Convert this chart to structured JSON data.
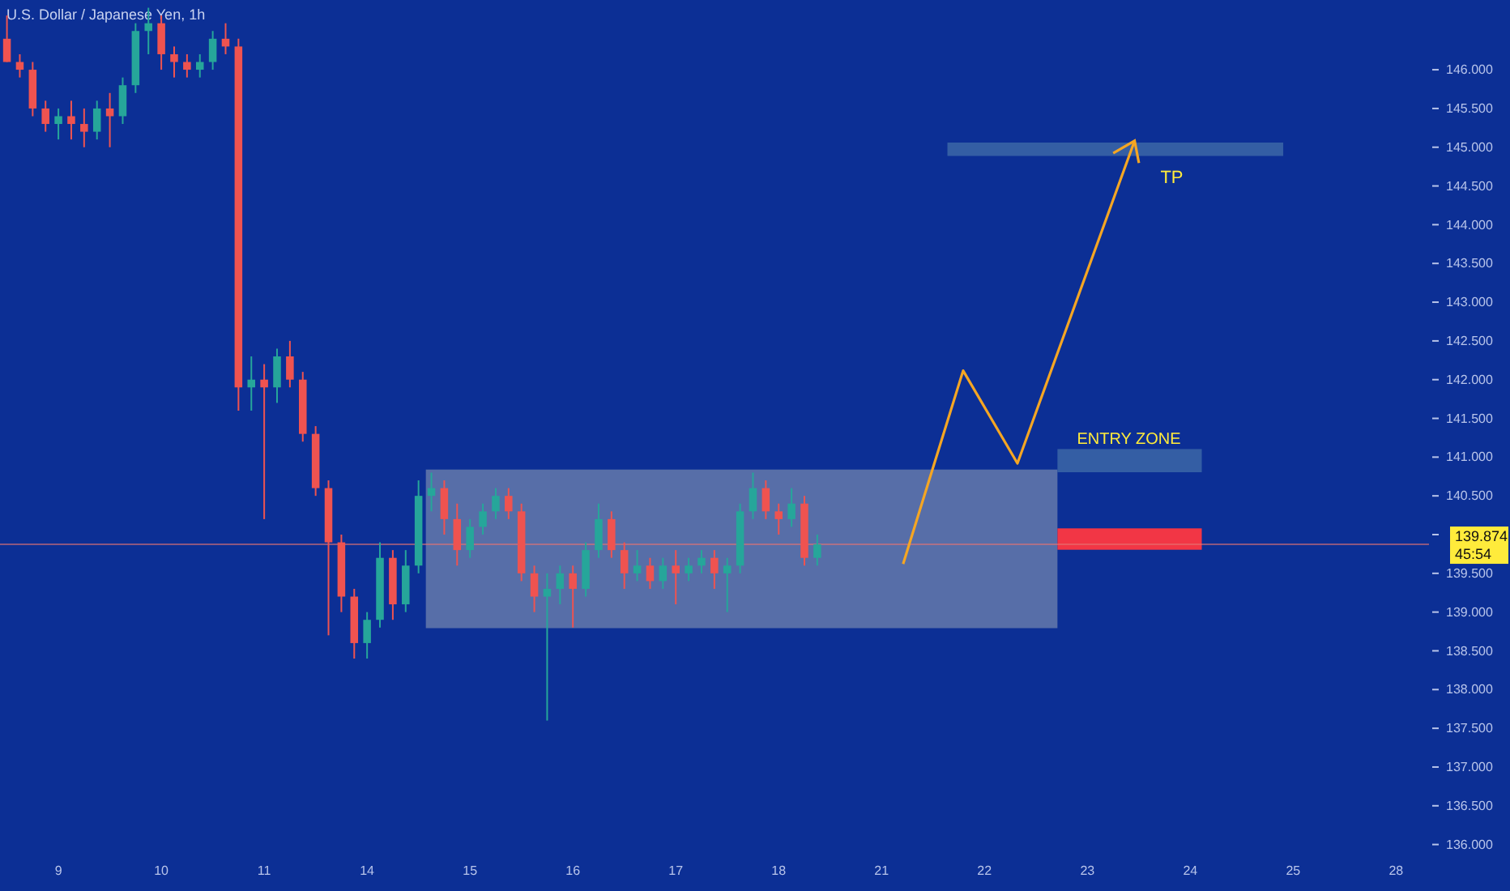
{
  "chart_data": {
    "type": "candlestick",
    "title": "U.S. Dollar / Japanese Yen, 1h",
    "categories": [
      null,
      null,
      null,
      null,
      "9",
      null,
      null,
      null,
      null,
      null,
      null,
      null,
      "10",
      null,
      null,
      null,
      null,
      null,
      null,
      null,
      "11",
      null,
      null,
      null,
      null,
      null,
      null,
      null,
      "14",
      null,
      null,
      null,
      null,
      null,
      null,
      null,
      "15",
      null,
      null,
      null,
      null,
      null,
      null,
      null,
      "16",
      null,
      null,
      null,
      null,
      null,
      null,
      null,
      "17",
      null,
      null,
      null,
      null,
      null,
      null,
      null,
      "18",
      null,
      null,
      null,
      null,
      null,
      null,
      null,
      "21",
      null,
      null,
      null,
      null,
      null,
      null,
      null,
      "22",
      null,
      null,
      null,
      null,
      null,
      null,
      null,
      "23",
      null,
      null,
      null,
      null,
      null,
      null,
      null,
      "24",
      null,
      null,
      null,
      null,
      null,
      null,
      null,
      "25",
      null,
      null,
      null,
      null,
      null,
      null,
      null,
      "28",
      null,
      null
    ],
    "ohlc": [
      [
        146.4,
        146.7,
        146.1,
        146.1
      ],
      [
        146.1,
        146.2,
        145.9,
        146.0
      ],
      [
        146.0,
        146.1,
        145.4,
        145.5
      ],
      [
        145.5,
        145.6,
        145.2,
        145.3
      ],
      [
        145.3,
        145.5,
        145.1,
        145.4
      ],
      [
        145.4,
        145.6,
        145.1,
        145.3
      ],
      [
        145.3,
        145.5,
        145.0,
        145.2
      ],
      [
        145.2,
        145.6,
        145.1,
        145.5
      ],
      [
        145.5,
        145.7,
        145.0,
        145.4
      ],
      [
        145.4,
        145.9,
        145.3,
        145.8
      ],
      [
        145.8,
        146.6,
        145.7,
        146.5
      ],
      [
        146.5,
        146.8,
        146.2,
        146.6
      ],
      [
        146.6,
        146.7,
        146.0,
        146.2
      ],
      [
        146.2,
        146.3,
        145.9,
        146.1
      ],
      [
        146.1,
        146.2,
        145.9,
        146.0
      ],
      [
        146.0,
        146.2,
        145.9,
        146.1
      ],
      [
        146.1,
        146.5,
        146.0,
        146.4
      ],
      [
        146.4,
        146.6,
        146.2,
        146.3
      ],
      [
        146.3,
        146.4,
        141.6,
        141.9
      ],
      [
        141.9,
        142.3,
        141.6,
        142.0
      ],
      [
        142.0,
        142.2,
        140.2,
        141.9
      ],
      [
        141.9,
        142.4,
        141.7,
        142.3
      ],
      [
        142.3,
        142.5,
        141.9,
        142.0
      ],
      [
        142.0,
        142.1,
        141.2,
        141.3
      ],
      [
        141.3,
        141.4,
        140.5,
        140.6
      ],
      [
        140.6,
        140.7,
        138.7,
        139.9
      ],
      [
        139.9,
        140.0,
        139.0,
        139.2
      ],
      [
        139.2,
        139.3,
        138.4,
        138.6
      ],
      [
        138.6,
        139.0,
        138.4,
        138.9
      ],
      [
        138.9,
        139.9,
        138.8,
        139.7
      ],
      [
        139.7,
        139.8,
        138.9,
        139.1
      ],
      [
        139.1,
        139.8,
        139.0,
        139.6
      ],
      [
        139.6,
        140.7,
        139.5,
        140.5
      ],
      [
        140.5,
        140.8,
        140.3,
        140.6
      ],
      [
        140.6,
        140.7,
        140.0,
        140.2
      ],
      [
        140.2,
        140.4,
        139.6,
        139.8
      ],
      [
        139.8,
        140.2,
        139.7,
        140.1
      ],
      [
        140.1,
        140.4,
        140.0,
        140.3
      ],
      [
        140.3,
        140.6,
        140.2,
        140.5
      ],
      [
        140.5,
        140.6,
        140.2,
        140.3
      ],
      [
        140.3,
        140.4,
        139.4,
        139.5
      ],
      [
        139.5,
        139.6,
        139.0,
        139.2
      ],
      [
        139.2,
        139.5,
        137.6,
        139.3
      ],
      [
        139.3,
        139.6,
        139.1,
        139.5
      ],
      [
        139.5,
        139.6,
        138.8,
        139.3
      ],
      [
        139.3,
        139.9,
        139.2,
        139.8
      ],
      [
        139.8,
        140.4,
        139.7,
        140.2
      ],
      [
        140.2,
        140.3,
        139.7,
        139.8
      ],
      [
        139.8,
        139.9,
        139.3,
        139.5
      ],
      [
        139.5,
        139.8,
        139.4,
        139.6
      ],
      [
        139.6,
        139.7,
        139.3,
        139.4
      ],
      [
        139.4,
        139.7,
        139.3,
        139.6
      ],
      [
        139.6,
        139.8,
        139.1,
        139.5
      ],
      [
        139.5,
        139.7,
        139.4,
        139.6
      ],
      [
        139.6,
        139.8,
        139.5,
        139.7
      ],
      [
        139.7,
        139.8,
        139.3,
        139.5
      ],
      [
        139.5,
        139.7,
        139.0,
        139.6
      ],
      [
        139.6,
        140.4,
        139.5,
        140.3
      ],
      [
        140.3,
        140.8,
        140.2,
        140.6
      ],
      [
        140.6,
        140.7,
        140.2,
        140.3
      ],
      [
        140.3,
        140.4,
        140.0,
        140.2
      ],
      [
        140.2,
        140.6,
        140.1,
        140.4
      ],
      [
        140.4,
        140.5,
        139.6,
        139.7
      ],
      [
        139.7,
        140.0,
        139.6,
        139.874
      ],
      null,
      null,
      null,
      null,
      null,
      null,
      null,
      null,
      null,
      null,
      null,
      null,
      null,
      null,
      null,
      null,
      null,
      null,
      null,
      null,
      null,
      null,
      null,
      null,
      null,
      null,
      null,
      null,
      null,
      null,
      null,
      null,
      null,
      null,
      null,
      null,
      null,
      null,
      null,
      null,
      null,
      null,
      null,
      null,
      null,
      null,
      null
    ],
    "colors": [
      "#ef5350",
      "#ef5350",
      "#ef5350",
      "#ef5350",
      "#26a69a",
      "#ef5350",
      "#ef5350",
      "#26a69a",
      "#ef5350",
      "#26a69a",
      "#26a69a",
      "#26a69a",
      "#ef5350",
      "#ef5350",
      "#ef5350",
      "#26a69a",
      "#26a69a",
      "#ef5350",
      "#ef5350",
      "#26a69a",
      "#ef5350",
      "#26a69a",
      "#ef5350",
      "#ef5350",
      "#ef5350",
      "#ef5350",
      "#ef5350",
      "#ef5350",
      "#26a69a",
      "#26a69a",
      "#ef5350",
      "#26a69a",
      "#26a69a",
      "#26a69a",
      "#ef5350",
      "#ef5350",
      "#26a69a",
      "#26a69a",
      "#26a69a",
      "#ef5350",
      "#ef5350",
      "#ef5350",
      "#26a69a",
      "#26a69a",
      "#ef5350",
      "#26a69a",
      "#26a69a",
      "#ef5350",
      "#ef5350",
      "#26a69a",
      "#ef5350",
      "#26a69a",
      "#ef5350",
      "#26a69a",
      "#26a69a",
      "#ef5350",
      "#26a69a",
      "#26a69a",
      "#26a69a",
      "#ef5350",
      "#ef5350",
      "#26a69a",
      "#ef5350",
      "#26a69a",
      null,
      null,
      null,
      null,
      null,
      null,
      null,
      null,
      null,
      null,
      null,
      null,
      null,
      null,
      null,
      null,
      null,
      null,
      null,
      null,
      null,
      null,
      null,
      null,
      null,
      null,
      null,
      null,
      null,
      null,
      null,
      null,
      null,
      null,
      null,
      null,
      null,
      null,
      null,
      null,
      null,
      null,
      null,
      null,
      null,
      null,
      null
    ],
    "ylim": [
      135.4,
      146.9
    ],
    "yticks": [
      {
        "value": 136,
        "label": "136.000"
      },
      {
        "value": 136.5,
        "label": "136.500"
      },
      {
        "value": 137,
        "label": "137.000"
      },
      {
        "value": 137.5,
        "label": "137.500"
      },
      {
        "value": 138,
        "label": "138.000"
      },
      {
        "value": 138.5,
        "label": "138.500"
      },
      {
        "value": 139,
        "label": "139.000"
      },
      {
        "value": 139.5,
        "label": "139.500"
      },
      {
        "value": 140,
        "label": null
      },
      {
        "value": 140.5,
        "label": "140.500"
      },
      {
        "value": 141,
        "label": "141.000"
      },
      {
        "value": 141.5,
        "label": "141.500"
      },
      {
        "value": 142,
        "label": "142.000"
      },
      {
        "value": 142.5,
        "label": "142.500"
      },
      {
        "value": 143,
        "label": "143.000"
      },
      {
        "value": 143.5,
        "label": "143.500"
      },
      {
        "value": 144,
        "label": "144.000"
      },
      {
        "value": 144.5,
        "label": "144.500"
      },
      {
        "value": 145,
        "label": "145.000"
      },
      {
        "value": 145.5,
        "label": "145.500"
      },
      {
        "value": 146,
        "label": "146.000"
      }
    ],
    "ref_lines": [
      {
        "axis": "y",
        "value": 139.874,
        "label": "139.874",
        "color": "#e57373"
      }
    ],
    "annotations": [
      "TP",
      "ENTRY ZONE",
      "45:54"
    ],
    "grid": false
  }
}
